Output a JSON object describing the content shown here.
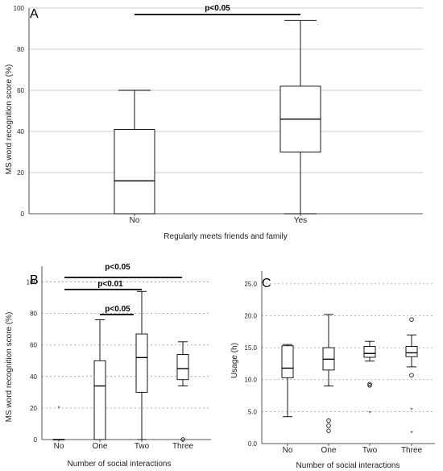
{
  "chart_data": [
    {
      "panel": "A",
      "type": "box",
      "xlabel": "Regularly meets friends and family",
      "ylabel": "MS word recognition score (%)",
      "ylim": [
        0,
        100
      ],
      "yticks": [
        0,
        20,
        40,
        60,
        80,
        100
      ],
      "grid": "horizontal-solid",
      "categories": [
        "No",
        "Yes"
      ],
      "boxes": [
        {
          "category": "No",
          "whisker_low": 0,
          "q1": 0,
          "median": 16,
          "q3": 41,
          "whisker_high": 60,
          "outliers": [],
          "extremes": []
        },
        {
          "category": "Yes",
          "whisker_low": 0,
          "q1": 30,
          "median": 46,
          "q3": 62,
          "whisker_high": 94,
          "outliers": [],
          "extremes": []
        }
      ],
      "annotations": [
        {
          "text": "p<0.05",
          "from": "No",
          "to": "Yes"
        }
      ]
    },
    {
      "panel": "B",
      "type": "box",
      "xlabel": "Number of social interactions",
      "ylabel": "MS word recognition score (%)",
      "ylim": [
        0,
        110
      ],
      "yticks": [
        0,
        20,
        40,
        60,
        80,
        100
      ],
      "grid": "horizontal-dotted",
      "categories": [
        "No",
        "One",
        "Two",
        "Three"
      ],
      "boxes": [
        {
          "category": "No",
          "whisker_low": 0,
          "q1": 0,
          "median": 0,
          "q3": 0,
          "whisker_high": 0,
          "outliers": [],
          "extremes": [
            20
          ]
        },
        {
          "category": "One",
          "whisker_low": 0,
          "q1": 0,
          "median": 34,
          "q3": 50,
          "whisker_high": 76,
          "outliers": [],
          "extremes": []
        },
        {
          "category": "Two",
          "whisker_low": 0,
          "q1": 30,
          "median": 52,
          "q3": 67,
          "whisker_high": 94,
          "outliers": [],
          "extremes": []
        },
        {
          "category": "Three",
          "whisker_low": 34,
          "q1": 38,
          "median": 45,
          "q3": 54,
          "whisker_high": 62,
          "outliers": [
            0
          ],
          "extremes": []
        }
      ],
      "annotations": [
        {
          "text": "p<0.05",
          "from": "No",
          "to": "Three"
        },
        {
          "text": "p<0.01",
          "from": "No",
          "to": "Two"
        },
        {
          "text": "p<0.05",
          "from": "One",
          "to": "Two"
        }
      ]
    },
    {
      "panel": "C",
      "type": "box",
      "xlabel": "Number of social interactions",
      "ylabel": "Usage (h)",
      "ylim": [
        0,
        27
      ],
      "yticks": [
        "0.0",
        "5.0",
        "10.0",
        "15.0",
        "20.0",
        "25.0"
      ],
      "grid": "horizontal-dotted",
      "categories": [
        "No",
        "One",
        "Two",
        "Three"
      ],
      "boxes": [
        {
          "category": "No",
          "whisker_low": 4.2,
          "q1": 10.3,
          "median": 11.8,
          "q3": 15.3,
          "whisker_high": 15.5,
          "outliers": [],
          "extremes": []
        },
        {
          "category": "One",
          "whisker_low": 9.0,
          "q1": 11.5,
          "median": 13.2,
          "q3": 15.0,
          "whisker_high": 20.2,
          "outliers": [
            2.0,
            2.8,
            3.6
          ],
          "extremes": []
        },
        {
          "category": "Two",
          "whisker_low": 12.9,
          "q1": 13.5,
          "median": 14.1,
          "q3": 15.2,
          "whisker_high": 16.0,
          "outliers": [
            9.1,
            9.3
          ],
          "extremes": [
            4.8
          ]
        },
        {
          "category": "Three",
          "whisker_low": 12.0,
          "q1": 13.6,
          "median": 14.2,
          "q3": 15.2,
          "whisker_high": 17.0,
          "outliers": [
            19.4,
            10.7
          ],
          "extremes": [
            5.3,
            1.7
          ]
        }
      ],
      "annotations": []
    }
  ]
}
